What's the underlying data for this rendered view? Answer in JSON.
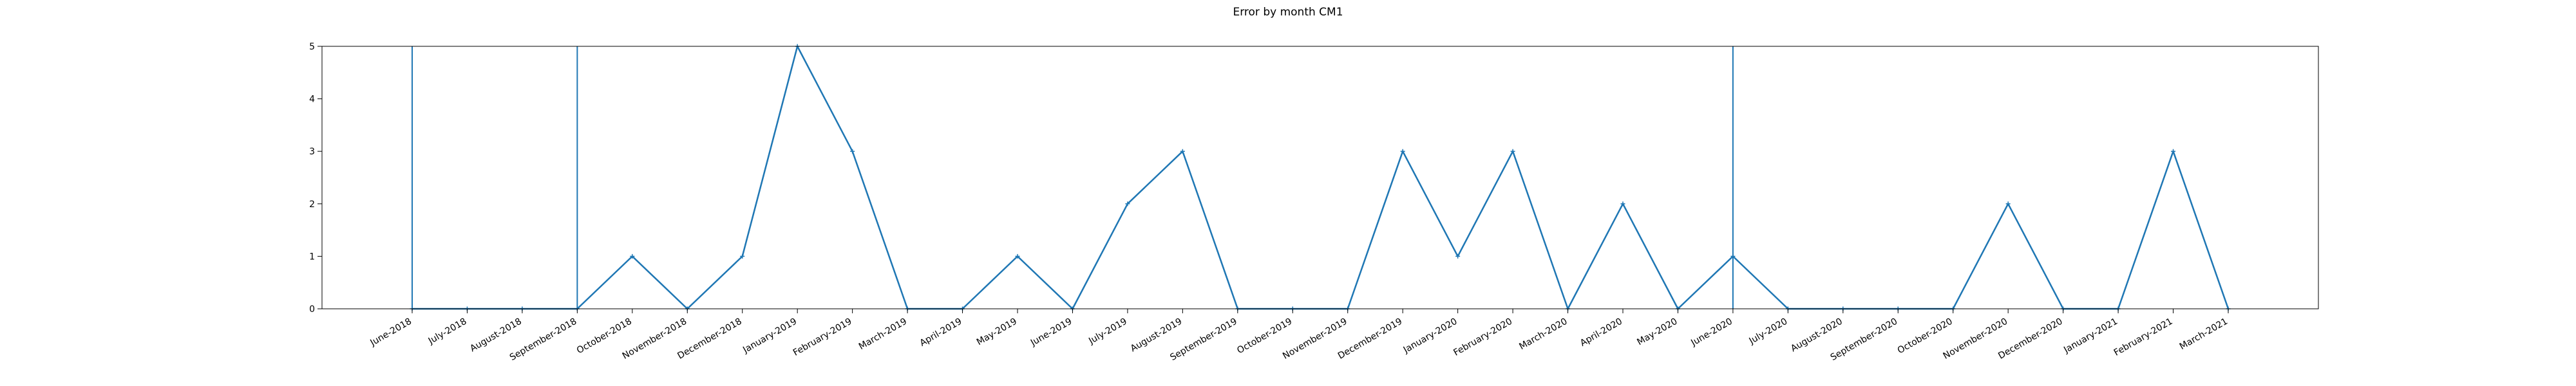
{
  "chart_data": {
    "type": "line",
    "title": "Error by month CM1",
    "xlabel": "",
    "ylabel": "",
    "ylim": [
      0,
      5
    ],
    "yticks": [
      0,
      1,
      2,
      3,
      4,
      5
    ],
    "grid": false,
    "line_color": "#1f77b4",
    "categories": [
      "June-2018",
      "July-2018",
      "August-2018",
      "September-2018",
      "October-2018",
      "November-2018",
      "December-2018",
      "January-2019",
      "February-2019",
      "March-2019",
      "April-2019",
      "May-2019",
      "June-2019",
      "July-2019",
      "August-2019",
      "September-2019",
      "October-2019",
      "November-2019",
      "December-2019",
      "January-2020",
      "February-2020",
      "March-2020",
      "April-2020",
      "May-2020",
      "June-2020",
      "July-2020",
      "August-2020",
      "September-2020",
      "October-2020",
      "November-2020",
      "December-2020",
      "January-2021",
      "February-2021",
      "March-2021"
    ],
    "values": [
      0,
      0,
      0,
      0,
      1,
      0,
      1,
      5,
      3,
      0,
      0,
      1,
      0,
      2,
      3,
      0,
      0,
      0,
      3,
      1,
      3,
      0,
      2,
      0,
      1,
      0,
      0,
      0,
      0,
      2,
      0,
      0,
      3,
      0
    ],
    "vlines": [
      "June-2018",
      "September-2018",
      "June-2020"
    ]
  }
}
